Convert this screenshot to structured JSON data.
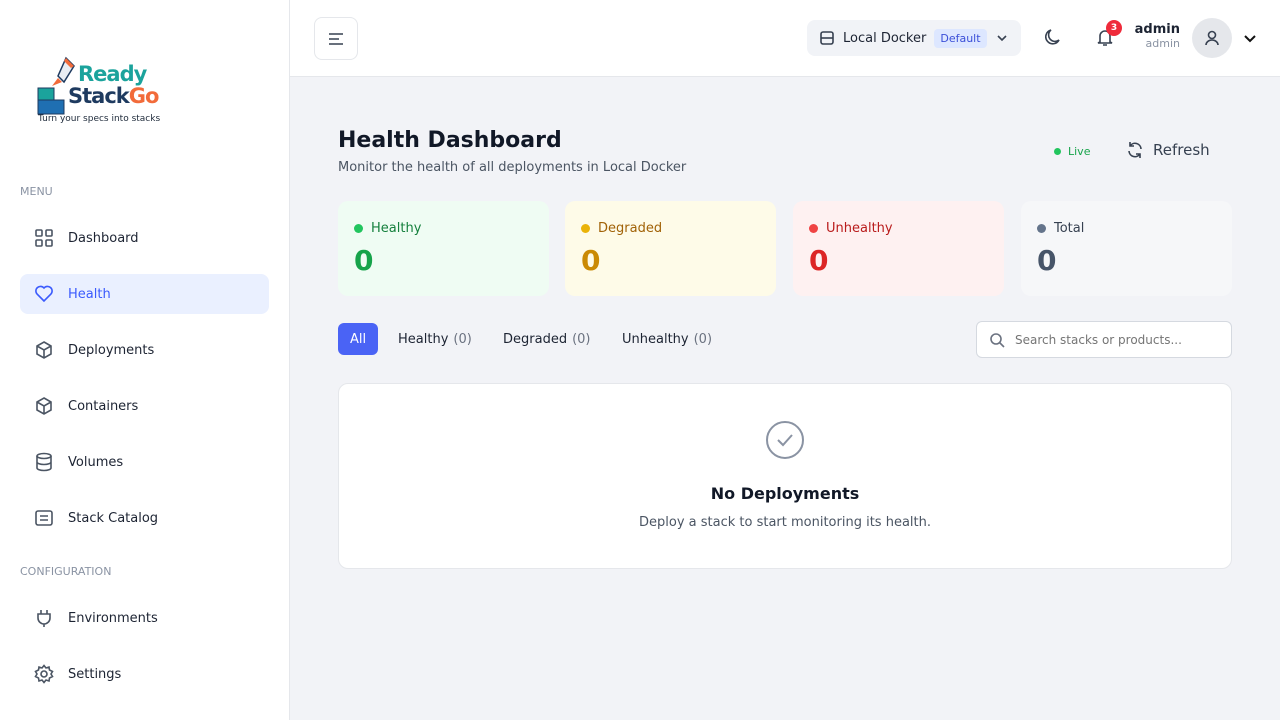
{
  "brand": {
    "word1": "Ready",
    "word2a": "Stack",
    "word2b": "Go",
    "tagline": "Turn your specs into stacks"
  },
  "sidebar": {
    "menu_title": "MENU",
    "config_title": "CONFIGURATION",
    "items": [
      {
        "label": "Dashboard",
        "icon": "grid-icon"
      },
      {
        "label": "Health",
        "icon": "heart-icon",
        "active": true
      },
      {
        "label": "Deployments",
        "icon": "box-icon"
      },
      {
        "label": "Containers",
        "icon": "box-icon"
      },
      {
        "label": "Volumes",
        "icon": "database-icon"
      },
      {
        "label": "Stack Catalog",
        "icon": "list-icon"
      }
    ],
    "config_items": [
      {
        "label": "Environments",
        "icon": "plug-icon"
      },
      {
        "label": "Settings",
        "icon": "gear-icon"
      }
    ]
  },
  "header": {
    "environment": "Local Docker",
    "env_badge": "Default",
    "notifications": "3",
    "user_name": "admin",
    "user_role": "admin"
  },
  "page": {
    "title": "Health Dashboard",
    "subtitle": "Monitor the health of all deployments in Local Docker",
    "live": "Live",
    "refresh": "Refresh"
  },
  "stats": [
    {
      "label": "Healthy",
      "value": "0",
      "color": "#16a34a"
    },
    {
      "label": "Degraded",
      "value": "0",
      "color": "#ca8a04"
    },
    {
      "label": "Unhealthy",
      "value": "0",
      "color": "#dc2626"
    },
    {
      "label": "Total",
      "value": "0",
      "color": "#475569"
    }
  ],
  "filters": [
    {
      "label": "All"
    },
    {
      "label": "Healthy",
      "count": "(0)"
    },
    {
      "label": "Degraded",
      "count": "(0)"
    },
    {
      "label": "Unhealthy",
      "count": "(0)"
    }
  ],
  "search": {
    "placeholder": "Search stacks or products..."
  },
  "empty": {
    "title": "No Deployments",
    "text": "Deploy a stack to start monitoring its health."
  }
}
